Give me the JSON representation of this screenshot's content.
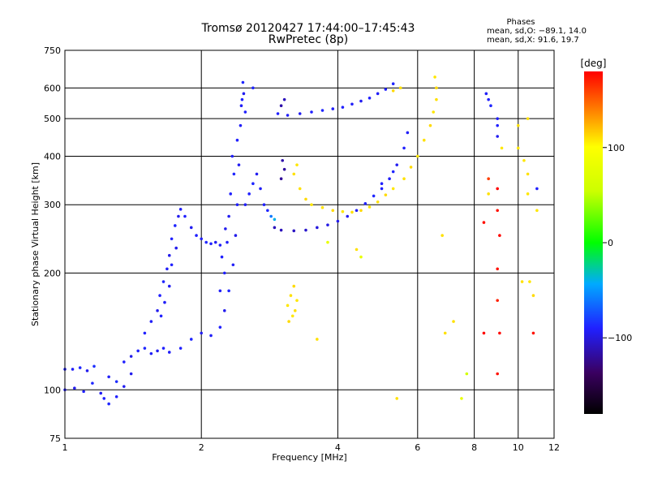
{
  "header": {
    "title_line1": "Tromsø 20120427 17:44:00–17:45:43",
    "title_line2": "RwPretec (8p)",
    "phases_title": "Phases",
    "phases_line1": "mean, sd,O: −89.1, 14.0",
    "phases_line2": "mean, sd,X:  91.6, 19.7"
  },
  "colorbar": {
    "label": "[deg]",
    "tick_labels": [
      "100",
      "0",
      "−100"
    ],
    "tick_values": [
      100,
      0,
      -100
    ],
    "range": [
      -180,
      180
    ]
  },
  "chart_data": {
    "type": "scatter",
    "title": "Tromsø 20120427 17:44:00–17:45:43",
    "subtitle": "RwPretec (8p)",
    "xlabel": "Frequency [MHz]",
    "ylabel": "Stationary phase Virtual Height [km]",
    "x_scale": "log",
    "y_scale": "log",
    "xlim": [
      1,
      12
    ],
    "ylim": [
      75,
      750
    ],
    "x_ticks": [
      1,
      2,
      4,
      6,
      8,
      10,
      12
    ],
    "y_ticks": [
      75,
      100,
      200,
      300,
      400,
      500,
      600,
      750
    ],
    "x_grid": [
      2,
      4,
      6,
      8,
      10
    ],
    "y_grid": [
      100,
      200,
      300,
      400,
      500,
      600
    ],
    "grid": true,
    "series": [
      {
        "name": "",
        "color_scale": "phase",
        "points": [
          [
            1.0,
            113,
            -90
          ],
          [
            1.04,
            113,
            -92
          ],
          [
            1.08,
            114,
            -88
          ],
          [
            1.12,
            112,
            -95
          ],
          [
            1.16,
            115,
            -85
          ],
          [
            1.0,
            100,
            -93
          ],
          [
            1.05,
            101,
            -96
          ],
          [
            1.1,
            99,
            -90
          ],
          [
            1.15,
            104,
            -88
          ],
          [
            1.2,
            98,
            -94
          ],
          [
            1.25,
            108,
            -92
          ],
          [
            1.3,
            105,
            -86
          ],
          [
            1.35,
            118,
            -90
          ],
          [
            1.4,
            122,
            -96
          ],
          [
            1.45,
            126,
            -90
          ],
          [
            1.5,
            128,
            -88
          ],
          [
            1.55,
            124,
            -92
          ],
          [
            1.6,
            126,
            -94
          ],
          [
            1.65,
            128,
            -90
          ],
          [
            1.3,
            96,
            -90
          ],
          [
            1.25,
            92,
            -88
          ],
          [
            1.35,
            102,
            -94
          ],
          [
            1.4,
            110,
            -95
          ],
          [
            1.22,
            95,
            -90
          ],
          [
            1.5,
            140,
            -90
          ],
          [
            1.55,
            150,
            -92
          ],
          [
            1.6,
            160,
            -95
          ],
          [
            1.62,
            175,
            -90
          ],
          [
            1.65,
            190,
            -88
          ],
          [
            1.68,
            205,
            -92
          ],
          [
            1.7,
            222,
            -96
          ],
          [
            1.72,
            245,
            -90
          ],
          [
            1.75,
            265,
            -88
          ],
          [
            1.78,
            280,
            -95
          ],
          [
            1.8,
            292,
            -92
          ],
          [
            1.84,
            280,
            -90
          ],
          [
            1.9,
            262,
            -94
          ],
          [
            1.95,
            250,
            -90
          ],
          [
            2.0,
            245,
            -92
          ],
          [
            2.05,
            240,
            -88
          ],
          [
            2.1,
            238,
            -90
          ],
          [
            2.15,
            240,
            -94
          ],
          [
            2.2,
            236,
            -92
          ],
          [
            1.76,
            232,
            -96
          ],
          [
            1.72,
            210,
            -90
          ],
          [
            1.7,
            185,
            -94
          ],
          [
            1.66,
            168,
            -92
          ],
          [
            1.63,
            155,
            -90
          ],
          [
            1.7,
            125,
            -92
          ],
          [
            1.8,
            128,
            -90
          ],
          [
            1.9,
            135,
            -88
          ],
          [
            2.0,
            140,
            -94
          ],
          [
            2.1,
            138,
            -92
          ],
          [
            2.2,
            145,
            -90
          ],
          [
            2.25,
            160,
            -95
          ],
          [
            2.3,
            180,
            -88
          ],
          [
            2.35,
            210,
            -92
          ],
          [
            2.38,
            250,
            -96
          ],
          [
            2.4,
            300,
            -90
          ],
          [
            2.42,
            380,
            -94
          ],
          [
            2.44,
            480,
            -92
          ],
          [
            2.46,
            560,
            -90
          ],
          [
            2.47,
            620,
            -88
          ],
          [
            2.25,
            200,
            -90
          ],
          [
            2.28,
            240,
            -92
          ],
          [
            2.3,
            280,
            -94
          ],
          [
            2.32,
            320,
            -90
          ],
          [
            2.36,
            360,
            -88
          ],
          [
            2.2,
            180,
            -92
          ],
          [
            2.22,
            220,
            -90
          ],
          [
            2.26,
            260,
            -95
          ],
          [
            2.34,
            400,
            -92
          ],
          [
            2.4,
            440,
            -90
          ],
          [
            2.5,
            300,
            -92
          ],
          [
            2.55,
            320,
            -90
          ],
          [
            2.6,
            340,
            -88
          ],
          [
            2.65,
            360,
            -94
          ],
          [
            2.7,
            330,
            -92
          ],
          [
            2.75,
            300,
            -90
          ],
          [
            2.8,
            290,
            -88
          ],
          [
            2.85,
            280,
            -60
          ],
          [
            2.9,
            275,
            -40
          ],
          [
            2.45,
            540,
            -92
          ],
          [
            2.5,
            520,
            -90
          ],
          [
            2.6,
            600,
            -88
          ],
          [
            2.48,
            580,
            -94
          ],
          [
            2.9,
            262,
            -110
          ],
          [
            3.0,
            258,
            -110
          ],
          [
            3.2,
            257,
            -108
          ],
          [
            3.4,
            258,
            -105
          ],
          [
            3.6,
            262,
            -100
          ],
          [
            3.8,
            266,
            -98
          ],
          [
            4.0,
            272,
            -96
          ],
          [
            4.2,
            280,
            -94
          ],
          [
            4.4,
            290,
            -92
          ],
          [
            4.6,
            302,
            -90
          ],
          [
            4.8,
            316,
            -88
          ],
          [
            5.0,
            330,
            -90
          ],
          [
            5.2,
            350,
            -92
          ],
          [
            5.4,
            380,
            -94
          ],
          [
            5.6,
            420,
            -90
          ],
          [
            5.7,
            460,
            -92
          ],
          [
            5.0,
            340,
            -90
          ],
          [
            5.3,
            365,
            -88
          ],
          [
            2.95,
            515,
            -90
          ],
          [
            3.1,
            510,
            -92
          ],
          [
            3.3,
            515,
            -94
          ],
          [
            3.5,
            520,
            -90
          ],
          [
            3.7,
            525,
            -88
          ],
          [
            3.9,
            530,
            -92
          ],
          [
            4.1,
            535,
            -90
          ],
          [
            4.3,
            545,
            -92
          ],
          [
            4.5,
            555,
            -94
          ],
          [
            4.7,
            565,
            -90
          ],
          [
            4.9,
            580,
            -92
          ],
          [
            5.1,
            595,
            -90
          ],
          [
            5.3,
            615,
            -88
          ],
          [
            3.0,
            540,
            -115
          ],
          [
            3.05,
            560,
            -110
          ],
          [
            3.0,
            350,
            -120
          ],
          [
            3.05,
            370,
            -118
          ],
          [
            3.02,
            390,
            -115
          ],
          [
            3.3,
            330,
            110
          ],
          [
            3.4,
            310,
            112
          ],
          [
            3.5,
            300,
            108
          ],
          [
            3.7,
            295,
            110
          ],
          [
            3.9,
            290,
            112
          ],
          [
            4.1,
            288,
            108
          ],
          [
            4.3,
            287,
            110
          ],
          [
            4.5,
            290,
            112
          ],
          [
            4.7,
            296,
            108
          ],
          [
            4.9,
            305,
            110
          ],
          [
            5.1,
            318,
            112
          ],
          [
            5.3,
            330,
            108
          ],
          [
            5.6,
            350,
            110
          ],
          [
            5.8,
            375,
            112
          ],
          [
            6.0,
            400,
            108
          ],
          [
            6.2,
            440,
            110
          ],
          [
            6.4,
            480,
            112
          ],
          [
            6.5,
            520,
            108
          ],
          [
            6.6,
            560,
            110
          ],
          [
            6.6,
            600,
            112
          ],
          [
            3.25,
            380,
            108
          ],
          [
            3.2,
            360,
            110
          ],
          [
            6.55,
            640,
            108
          ],
          [
            5.5,
            600,
            110
          ],
          [
            5.3,
            590,
            112
          ],
          [
            3.1,
            165,
            108
          ],
          [
            3.15,
            175,
            110
          ],
          [
            3.2,
            185,
            112
          ],
          [
            3.18,
            155,
            108
          ],
          [
            3.22,
            160,
            110
          ],
          [
            3.12,
            150,
            112
          ],
          [
            3.25,
            170,
            108
          ],
          [
            8.5,
            580,
            -92
          ],
          [
            8.6,
            560,
            -90
          ],
          [
            8.7,
            540,
            -88
          ],
          [
            9.0,
            500,
            -92
          ],
          [
            9.0,
            480,
            -90
          ],
          [
            9.0,
            450,
            -94
          ],
          [
            9.2,
            420,
            108
          ],
          [
            9.0,
            330,
            180
          ],
          [
            9.0,
            290,
            175
          ],
          [
            9.1,
            250,
            178
          ],
          [
            9.0,
            205,
            175
          ],
          [
            9.0,
            170,
            170
          ],
          [
            9.1,
            140,
            178
          ],
          [
            9.0,
            110,
            175
          ],
          [
            8.6,
            350,
            160
          ],
          [
            8.6,
            320,
            110
          ],
          [
            8.4,
            270,
            175
          ],
          [
            8.4,
            140,
            178
          ],
          [
            10.0,
            480,
            110
          ],
          [
            10.0,
            420,
            108
          ],
          [
            10.5,
            360,
            110
          ],
          [
            10.5,
            320,
            108
          ],
          [
            10.2,
            190,
            110
          ],
          [
            10.6,
            190,
            108
          ],
          [
            10.8,
            175,
            112
          ],
          [
            10.8,
            140,
            175
          ],
          [
            10.5,
            500,
            110
          ],
          [
            10.3,
            390,
            108
          ],
          [
            11.0,
            330,
            -90
          ],
          [
            11.0,
            290,
            108
          ],
          [
            7.7,
            110,
            60
          ],
          [
            7.5,
            95,
            80
          ],
          [
            7.2,
            150,
            110
          ],
          [
            5.4,
            95,
            110
          ],
          [
            4.5,
            220,
            80
          ],
          [
            4.4,
            230,
            110
          ],
          [
            3.8,
            240,
            80
          ],
          [
            3.6,
            135,
            110
          ],
          [
            6.9,
            140,
            110
          ],
          [
            6.8,
            250,
            110
          ]
        ]
      }
    ]
  }
}
